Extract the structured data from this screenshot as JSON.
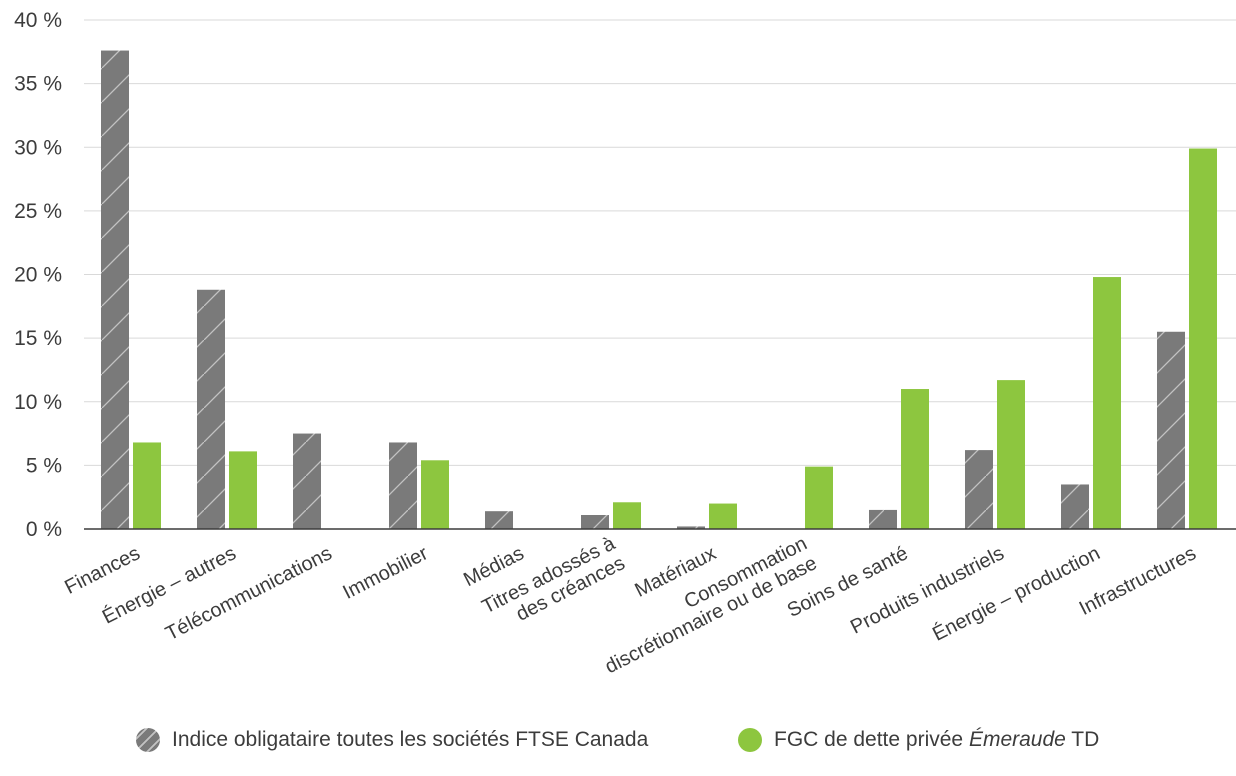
{
  "colors": {
    "series1": "#7a7a7a",
    "series2": "#8dc63f",
    "grid": "#d9d9d9",
    "axis": "#3c3c3c",
    "text": "#3c3c3c"
  },
  "legend": {
    "item1": "Indice obligataire toutes les sociétés FTSE Canada",
    "item2_prefix": "FGC de dette privée ",
    "item2_italic": "Émeraude",
    "item2_suffix": " TD"
  },
  "chart_data": {
    "type": "bar",
    "categories": [
      [
        "Finances"
      ],
      [
        "Énergie – autres"
      ],
      [
        "Télécommunications"
      ],
      [
        "Immobilier"
      ],
      [
        "Médias"
      ],
      [
        "Titres adossés à",
        "des créances"
      ],
      [
        "Matériaux"
      ],
      [
        "Consommation",
        "discrétionnaire ou de base"
      ],
      [
        "Soins de santé"
      ],
      [
        "Produits industriels"
      ],
      [
        "Énergie – production"
      ],
      [
        "Infrastructures"
      ]
    ],
    "series": [
      {
        "name": "Indice obligataire toutes les sociétés FTSE Canada",
        "pattern": "hatched",
        "values": [
          37.6,
          18.8,
          7.5,
          6.8,
          1.4,
          1.1,
          0.2,
          0.0,
          1.5,
          6.2,
          3.5,
          15.5
        ]
      },
      {
        "name": "FGC de dette privée Émeraude TD",
        "pattern": "solid",
        "values": [
          6.8,
          6.1,
          0.0,
          5.4,
          0.0,
          2.1,
          2.0,
          4.9,
          11.0,
          11.7,
          19.8,
          29.9
        ]
      }
    ],
    "y_ticks": [
      "0 %",
      "5 %",
      "10 %",
      "15 %",
      "20 %",
      "25 %",
      "30 %",
      "35 %",
      "40 %"
    ],
    "y_tick_values": [
      0,
      5,
      10,
      15,
      20,
      25,
      30,
      35,
      40
    ],
    "ylim": [
      0,
      40
    ],
    "grid": true,
    "legend_position": "bottom",
    "x_label_rotation": "angled"
  }
}
